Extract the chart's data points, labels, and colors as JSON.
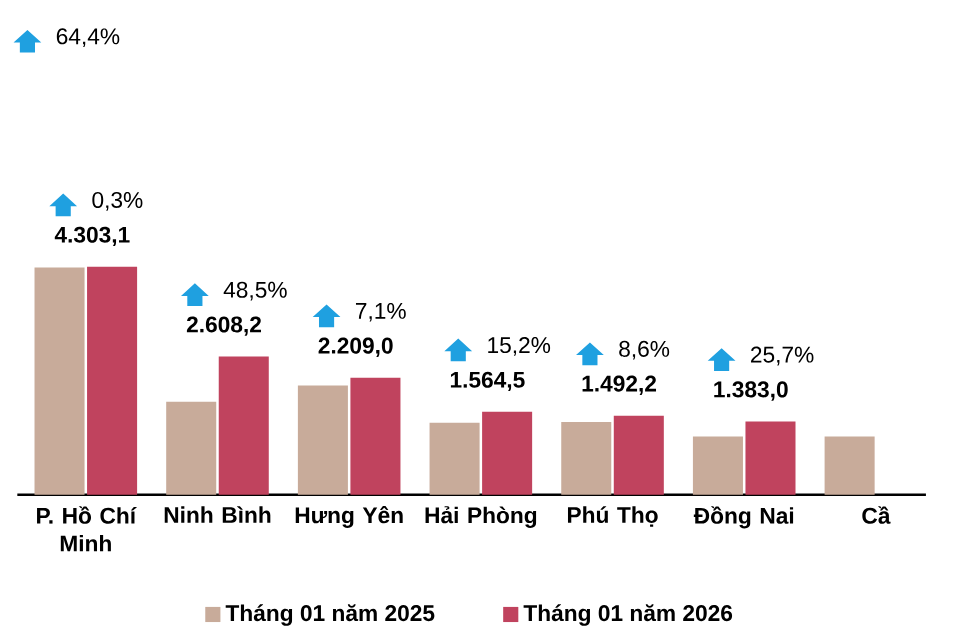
{
  "chart_data": {
    "type": "bar",
    "categories": [
      "P. Hồ Chí Minh",
      "Ninh Bình",
      "Hưng Yên",
      "Hải Phòng",
      "Phú Thọ",
      "Đồng Nai",
      "Cầ"
    ],
    "series": [
      {
        "name": "Tháng 01 năm  2025",
        "color": "#c8ab9a",
        "values": [
          4290,
          1756,
          2063,
          1358,
          1374,
          1100,
          1100
        ]
      },
      {
        "name": "Tháng 01 năm  2026",
        "color": "#c0435e",
        "values": [
          4303.1,
          2608.2,
          2209.0,
          1564.5,
          1492.2,
          1383.0,
          null
        ],
        "value_labels": [
          "4.303,1",
          "2.608,2",
          "2.209,0",
          "1.564,5",
          "1.492,2",
          "1.383,0",
          null
        ]
      }
    ],
    "tick_labels": "x",
    "legend": "bottom",
    "annotations": [
      "64,4%",
      "0,3%",
      "48,5%",
      "7,1%",
      "15,2%",
      "8,6%",
      "25,7%"
    ]
  }
}
